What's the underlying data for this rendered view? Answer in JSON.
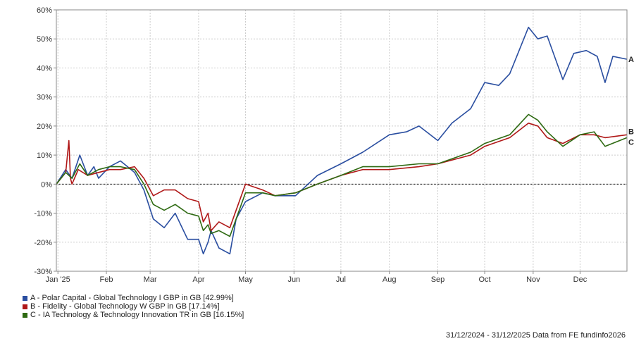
{
  "chart_data": {
    "type": "line",
    "ylim": [
      -30,
      60
    ],
    "yticks": [
      -30,
      -20,
      -10,
      0,
      10,
      20,
      30,
      40,
      50,
      60
    ],
    "ytick_labels": [
      "-30%",
      "-20%",
      "-10%",
      "0%",
      "10%",
      "20%",
      "30%",
      "40%",
      "50%",
      "60%"
    ],
    "xlim": [
      "2024-12-31",
      "2025-12-31"
    ],
    "xticks": [
      "2025-01-01",
      "2025-02-01",
      "2025-03-01",
      "2025-04-01",
      "2025-05-01",
      "2025-06-01",
      "2025-07-01",
      "2025-08-01",
      "2025-09-01",
      "2025-10-01",
      "2025-11-01",
      "2025-12-01"
    ],
    "xtick_labels": [
      "Jan '25",
      "Feb",
      "Mar",
      "Apr",
      "May",
      "Jun",
      "Jul",
      "Aug",
      "Sep",
      "Oct",
      "Nov",
      "Dec"
    ],
    "grid": true,
    "zero_line": true,
    "series": [
      {
        "id": "A",
        "name": "A - Polar Capital - Global Technology I GBP in GB [42.99%]",
        "color": "#2a4ea0",
        "x": [
          "2024-12-31",
          "2025-01-06",
          "2025-01-10",
          "2025-01-15",
          "2025-01-20",
          "2025-01-24",
          "2025-01-27",
          "2025-02-03",
          "2025-02-10",
          "2025-02-19",
          "2025-02-25",
          "2025-03-03",
          "2025-03-10",
          "2025-03-17",
          "2025-03-25",
          "2025-04-01",
          "2025-04-04",
          "2025-04-07",
          "2025-04-09",
          "2025-04-14",
          "2025-04-21",
          "2025-04-25",
          "2025-05-01",
          "2025-05-12",
          "2025-05-20",
          "2025-06-02",
          "2025-06-16",
          "2025-07-01",
          "2025-07-15",
          "2025-08-01",
          "2025-08-12",
          "2025-08-20",
          "2025-09-01",
          "2025-09-10",
          "2025-09-22",
          "2025-10-01",
          "2025-10-10",
          "2025-10-17",
          "2025-10-29",
          "2025-11-04",
          "2025-11-10",
          "2025-11-20",
          "2025-11-27",
          "2025-12-05",
          "2025-12-12",
          "2025-12-17",
          "2025-12-22",
          "2025-12-31"
        ],
        "y": [
          0,
          5,
          2,
          10,
          3,
          6,
          2,
          6,
          8,
          4,
          -2,
          -12,
          -15,
          -10,
          -19,
          -19,
          -24,
          -20,
          -16,
          -22,
          -24,
          -12,
          -6,
          -3,
          -4,
          -4,
          3,
          7,
          11,
          17,
          18,
          20,
          15,
          21,
          26,
          35,
          34,
          38,
          54,
          50,
          51,
          36,
          45,
          46,
          44,
          35,
          44,
          43
        ]
      },
      {
        "id": "B",
        "name": "B - Fidelity - Global Technology W GBP in GB [17.14%]",
        "color": "#b01818",
        "x": [
          "2024-12-31",
          "2025-01-06",
          "2025-01-08",
          "2025-01-09",
          "2025-01-10",
          "2025-01-14",
          "2025-01-20",
          "2025-01-27",
          "2025-02-03",
          "2025-02-10",
          "2025-02-19",
          "2025-02-25",
          "2025-03-03",
          "2025-03-10",
          "2025-03-17",
          "2025-03-25",
          "2025-04-01",
          "2025-04-04",
          "2025-04-07",
          "2025-04-09",
          "2025-04-14",
          "2025-04-21",
          "2025-05-01",
          "2025-05-12",
          "2025-05-20",
          "2025-06-02",
          "2025-06-16",
          "2025-07-01",
          "2025-07-15",
          "2025-08-01",
          "2025-08-20",
          "2025-09-01",
          "2025-09-22",
          "2025-10-01",
          "2025-10-17",
          "2025-10-29",
          "2025-11-04",
          "2025-11-10",
          "2025-11-20",
          "2025-12-01",
          "2025-12-10",
          "2025-12-17",
          "2025-12-31"
        ],
        "y": [
          0,
          4,
          15,
          2,
          0,
          5,
          3,
          4,
          5,
          5,
          6,
          2,
          -4,
          -2,
          -2,
          -5,
          -6,
          -13,
          -10,
          -16,
          -13,
          -15,
          0,
          -2,
          -4,
          -3,
          0,
          3,
          5,
          5,
          6,
          7,
          10,
          13,
          16,
          21,
          20,
          16,
          14,
          17,
          17,
          16,
          17
        ]
      },
      {
        "id": "C",
        "name": "C - IA Technology & Technology Innovation TR in GB [16.15%]",
        "color": "#2e6a12",
        "x": [
          "2024-12-31",
          "2025-01-06",
          "2025-01-10",
          "2025-01-15",
          "2025-01-20",
          "2025-01-27",
          "2025-02-03",
          "2025-02-10",
          "2025-02-19",
          "2025-02-25",
          "2025-03-03",
          "2025-03-10",
          "2025-03-17",
          "2025-03-25",
          "2025-04-01",
          "2025-04-04",
          "2025-04-07",
          "2025-04-09",
          "2025-04-14",
          "2025-04-21",
          "2025-05-01",
          "2025-05-12",
          "2025-05-20",
          "2025-06-02",
          "2025-06-16",
          "2025-07-01",
          "2025-07-15",
          "2025-08-01",
          "2025-08-20",
          "2025-09-01",
          "2025-09-22",
          "2025-10-01",
          "2025-10-17",
          "2025-10-29",
          "2025-11-04",
          "2025-11-10",
          "2025-11-20",
          "2025-12-01",
          "2025-12-10",
          "2025-12-17",
          "2025-12-31"
        ],
        "y": [
          0,
          4,
          2,
          7,
          3,
          5,
          6,
          6,
          5,
          0,
          -7,
          -9,
          -7,
          -10,
          -11,
          -16,
          -14,
          -17,
          -16,
          -18,
          -3,
          -3,
          -4,
          -3,
          0,
          3,
          6,
          6,
          7,
          7,
          11,
          14,
          17,
          24,
          22,
          18,
          13,
          17,
          18,
          13,
          16
        ]
      }
    ],
    "legend_position": "bottom-left",
    "footer": "31/12/2024 - 31/12/2025 Data from FE fundinfo2026"
  }
}
